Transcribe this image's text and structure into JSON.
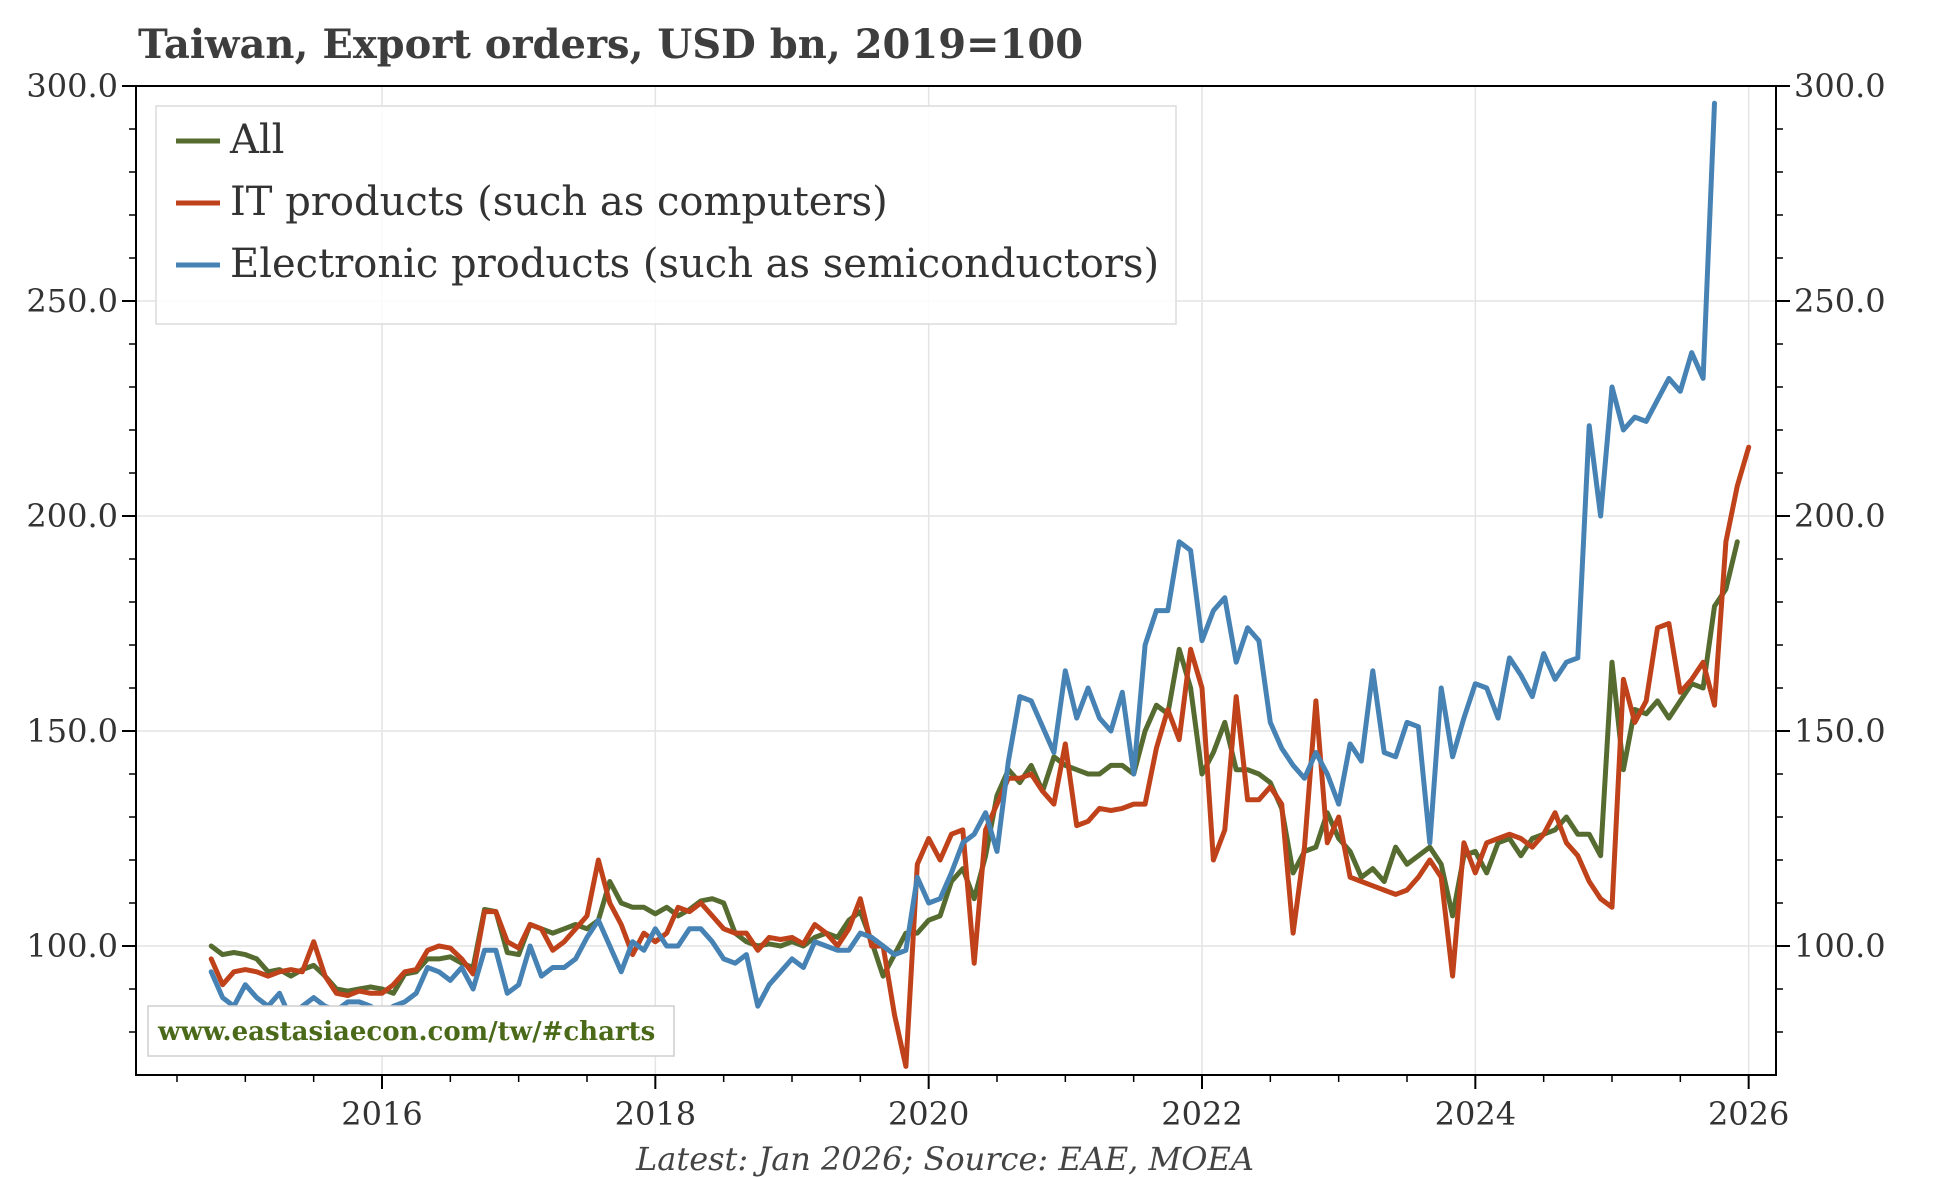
{
  "chart_data": {
    "type": "line",
    "title": "Taiwan, Export orders, USD bn, 2019=100",
    "source": "Latest: Jan 2026; Source: EAE, MOEA",
    "watermark": "www.eastasiaecon.com/tw/#charts",
    "xlabel": "",
    "ylabel": "",
    "xlim": [
      2014.2,
      2026.2
    ],
    "ylim": [
      70,
      300
    ],
    "x_ticks": [
      2016,
      2018,
      2020,
      2022,
      2024,
      2026
    ],
    "x_tick_labels": [
      "2016",
      "2018",
      "2020",
      "2022",
      "2024",
      "2026"
    ],
    "y_ticks": [
      100,
      150,
      200,
      250,
      300
    ],
    "y_tick_labels": [
      "100.0",
      "150.0",
      "200.0",
      "250.0",
      "300.0"
    ],
    "grid": true,
    "legend_position": "top-left",
    "x_start": 2014.75,
    "x_step": 0.083333,
    "colors": {
      "all": "#556b2f",
      "it": "#c0421b",
      "elec": "#4682b4",
      "watermark": "#4a6a1a"
    },
    "series": [
      {
        "name": "All",
        "key": "all",
        "values": [
          100,
          98,
          98.5,
          98,
          97,
          94,
          94.5,
          93,
          94.5,
          95.5,
          93,
          90,
          89.5,
          90,
          90.5,
          90,
          89,
          93.5,
          94,
          97,
          97,
          97.5,
          96,
          95,
          108.5,
          108,
          98.5,
          98,
          105,
          104,
          103,
          104,
          105,
          104,
          106,
          115,
          110,
          109,
          109,
          107.5,
          109,
          107,
          108.5,
          110.5,
          111,
          110,
          103,
          101,
          100,
          100.5,
          100,
          101,
          100,
          102,
          103,
          102,
          106,
          108,
          101,
          93,
          98,
          103,
          103,
          106,
          107,
          115,
          118,
          111,
          121,
          135,
          141,
          138,
          142,
          136,
          144,
          142,
          141,
          140,
          140,
          142,
          142,
          140,
          150,
          156,
          154,
          169,
          160,
          140,
          145,
          152,
          141,
          141,
          140,
          138,
          132,
          117,
          122,
          123,
          131,
          125,
          122,
          116,
          118,
          115,
          123,
          119,
          121,
          123,
          119,
          107,
          121,
          122,
          117,
          124,
          125,
          121,
          125,
          126,
          127,
          130,
          126,
          126,
          121,
          166,
          141,
          155,
          154,
          157,
          153,
          157,
          161,
          160,
          179,
          183,
          194
        ]
      },
      {
        "name": "IT products (such as computers)",
        "key": "it",
        "values": [
          97,
          91,
          94,
          94.5,
          94,
          93,
          94,
          94.5,
          94,
          101,
          93,
          89,
          88.5,
          89.5,
          89,
          89,
          91,
          94,
          94.5,
          99,
          100,
          99.5,
          97,
          93.5,
          108,
          108,
          101,
          99.5,
          105,
          104,
          99,
          101,
          104,
          107,
          120,
          110,
          105,
          98,
          103,
          101,
          103,
          109,
          108,
          110,
          107,
          104,
          103,
          103,
          99,
          102,
          101.5,
          102,
          100.5,
          105,
          103,
          100,
          104,
          111,
          100,
          100,
          84,
          72,
          119,
          125,
          120,
          126,
          127,
          96,
          127,
          133,
          139,
          139,
          140,
          136,
          133,
          147,
          128,
          129,
          132,
          131.5,
          132,
          133,
          133,
          146,
          155,
          148,
          169,
          160,
          120,
          127,
          158,
          134,
          134,
          137,
          133,
          103,
          123,
          157,
          124,
          130,
          116,
          115,
          114,
          113,
          112,
          113,
          116,
          120,
          116,
          93,
          124,
          117,
          124,
          125,
          126,
          125,
          123,
          126,
          131,
          124,
          121,
          115,
          111,
          109,
          162,
          152,
          157,
          174,
          175,
          159,
          162,
          166,
          156,
          194,
          207,
          216
        ]
      },
      {
        "name": "Electronic products (such as semiconductors)",
        "key": "elec",
        "values": [
          94,
          88,
          86,
          91,
          88,
          86,
          89,
          83,
          86,
          88,
          86,
          85,
          87,
          87,
          86,
          84,
          86,
          87,
          89,
          95,
          94,
          92,
          95,
          90,
          99,
          99,
          89,
          91,
          100,
          93,
          95,
          95,
          97,
          102,
          106,
          100,
          94,
          101,
          99,
          104,
          100,
          100,
          104,
          104,
          101,
          97,
          96,
          98,
          86,
          91,
          94,
          97,
          95,
          101,
          100,
          99,
          99,
          103,
          102,
          100,
          98,
          99,
          116,
          110,
          111,
          117,
          124,
          126,
          131,
          122,
          143,
          158,
          157,
          151,
          145,
          164,
          153,
          160,
          153,
          150,
          159,
          140,
          170,
          178,
          178,
          194,
          192,
          171,
          178,
          181,
          166,
          174,
          171,
          152,
          146,
          142,
          139,
          145,
          140,
          133,
          147,
          143,
          164,
          145,
          144,
          152,
          151,
          124,
          160,
          144,
          153,
          161,
          160,
          153,
          167,
          163,
          158,
          168,
          162,
          166,
          167,
          221,
          200,
          230,
          220,
          223,
          222,
          227,
          232,
          229,
          238,
          232,
          296
        ]
      }
    ],
    "legend": [
      "All",
      "IT products (such as computers)",
      "Electronic products (such as semiconductors)"
    ]
  }
}
